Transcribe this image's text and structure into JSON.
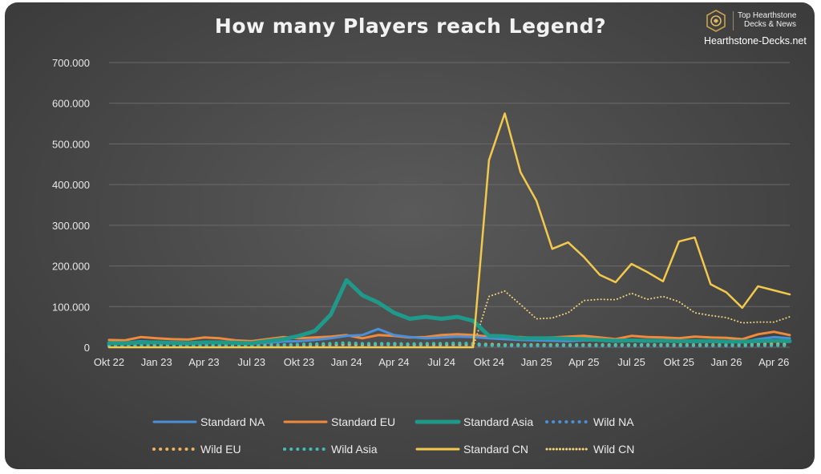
{
  "header": {
    "title": "How many Players reach Legend?",
    "brand_line1": "Top Hearthstone",
    "brand_line2": "Decks & News",
    "brand_site": "Hearthstone-Decks.net",
    "logo_icon": "hearthstone-logo-icon"
  },
  "chart_data": {
    "type": "line",
    "title": "How many Players reach Legend?",
    "xlabel": "",
    "ylabel": "",
    "ylim": [
      0,
      700000
    ],
    "y_ticks": [
      0,
      100000,
      200000,
      300000,
      400000,
      500000,
      600000,
      700000
    ],
    "y_tick_labels": [
      "0",
      "100.000",
      "200.000",
      "300.000",
      "400.000",
      "500.000",
      "600.000",
      "700.000"
    ],
    "x": [
      "Okt 22",
      "Nov 22",
      "Dez 22",
      "Jan 23",
      "Feb 23",
      "Mär 23",
      "Apr 23",
      "Mai 23",
      "Jun 23",
      "Jul 23",
      "Aug 23",
      "Sep 23",
      "Okt 23",
      "Nov 23",
      "Dez 23",
      "Jan 24",
      "Feb 24",
      "Mär 24",
      "Apr 24",
      "Mai 24",
      "Jun 24",
      "Jul 24",
      "Aug 24",
      "Sep 24",
      "Okt 24",
      "Nov 24",
      "Dez 24",
      "Jan 25",
      "Feb 25",
      "Mär 25",
      "Apr 25",
      "Mai 25",
      "Jun 25",
      "Jul 25",
      "Aug 25",
      "Sep 25",
      "Okt 25",
      "Nov 25",
      "Dez 25",
      "Jan 26",
      "Feb 26",
      "Mär 26",
      "Apr 26",
      "Mai 26"
    ],
    "x_tick_labels": [
      "Okt 22",
      "Jan 23",
      "Apr 23",
      "Jul 23",
      "Okt 23",
      "Jan 24",
      "Apr 24",
      "Jul 24",
      "Okt 24",
      "Jan 25",
      "Apr 25",
      "Jul 25",
      "Okt 25",
      "Jan 26",
      "Apr 26"
    ],
    "x_tick_indices": [
      0,
      3,
      6,
      9,
      12,
      15,
      18,
      21,
      24,
      27,
      30,
      33,
      36,
      39,
      42
    ],
    "grid": "horizontal",
    "legend_position": "bottom",
    "series": [
      {
        "name": "Standard NA",
        "color": "#4a90d9",
        "style": "solid",
        "width": 3,
        "values": [
          12000,
          11000,
          15000,
          13000,
          12000,
          11000,
          13000,
          12000,
          10000,
          9000,
          11000,
          14000,
          15000,
          18000,
          22000,
          28000,
          30000,
          45000,
          30000,
          25000,
          22000,
          24000,
          26000,
          25000,
          22000,
          20000,
          18000,
          17000,
          16000,
          15000,
          17000,
          16000,
          14000,
          15000,
          14000,
          15000,
          14000,
          13000,
          15000,
          14000,
          12000,
          20000,
          25000,
          22000
        ]
      },
      {
        "name": "Standard EU",
        "color": "#f08a3c",
        "style": "solid",
        "width": 3,
        "values": [
          18000,
          17000,
          25000,
          22000,
          20000,
          19000,
          24000,
          22000,
          17000,
          15000,
          20000,
          25000,
          22000,
          24000,
          26000,
          30000,
          22000,
          30000,
          28000,
          24000,
          25000,
          30000,
          32000,
          30000,
          26000,
          24000,
          25000,
          22000,
          24000,
          26000,
          28000,
          24000,
          20000,
          28000,
          25000,
          24000,
          22000,
          26000,
          24000,
          23000,
          20000,
          32000,
          38000,
          30000
        ]
      },
      {
        "name": "Standard Asia",
        "color": "#1f9a8a",
        "style": "solid",
        "width": 5,
        "values": [
          10000,
          10000,
          12000,
          12000,
          11000,
          10000,
          12000,
          12000,
          11000,
          10000,
          15000,
          20000,
          28000,
          40000,
          80000,
          165000,
          128000,
          110000,
          85000,
          70000,
          75000,
          70000,
          75000,
          65000,
          28000,
          27000,
          22000,
          22000,
          22000,
          21000,
          20000,
          18000,
          16000,
          17000,
          16000,
          16000,
          15000,
          15000,
          15000,
          14000,
          14000,
          15000,
          16000,
          15000
        ]
      },
      {
        "name": "Wild NA",
        "color": "#4a90d9",
        "style": "dotted",
        "width": 4,
        "values": [
          3000,
          3000,
          4000,
          3000,
          3000,
          3000,
          4000,
          3000,
          3000,
          3000,
          3000,
          4000,
          4000,
          5000,
          5000,
          6000,
          5000,
          6000,
          6000,
          5000,
          5000,
          5000,
          5000,
          5000,
          5000,
          4000,
          4000,
          4000,
          4000,
          4000,
          4000,
          4000,
          4000,
          4000,
          4000,
          4000,
          4000,
          4000,
          4000,
          4000,
          4000,
          5000,
          5000,
          5000
        ]
      },
      {
        "name": "Wild EU",
        "color": "#f0b060",
        "style": "dotted",
        "width": 4,
        "values": [
          4000,
          4000,
          5000,
          5000,
          4000,
          4000,
          5000,
          5000,
          4000,
          4000,
          5000,
          6000,
          6000,
          6000,
          7000,
          8000,
          7000,
          8000,
          8000,
          7000,
          7000,
          7000,
          8000,
          7000,
          7000,
          6000,
          6000,
          6000,
          6000,
          6000,
          6000,
          6000,
          6000,
          6000,
          6000,
          6000,
          6000,
          6000,
          6000,
          6000,
          6000,
          7000,
          8000,
          7000
        ]
      },
      {
        "name": "Wild Asia",
        "color": "#3fc0b0",
        "style": "dotted",
        "width": 4,
        "values": [
          3000,
          3000,
          4000,
          3000,
          3000,
          3000,
          4000,
          4000,
          3000,
          3000,
          4000,
          6000,
          7000,
          8000,
          9000,
          11000,
          9000,
          9000,
          9000,
          8000,
          9000,
          9000,
          10000,
          9000,
          5000,
          5000,
          5000,
          5000,
          5000,
          5000,
          5000,
          5000,
          5000,
          5000,
          5000,
          5000,
          5000,
          5000,
          5000,
          5000,
          5000,
          5000,
          5000,
          5000
        ]
      },
      {
        "name": "Standard CN",
        "color": "#f2c94c",
        "style": "solid",
        "width": 2.5,
        "values": [
          0,
          0,
          0,
          0,
          0,
          0,
          0,
          0,
          0,
          0,
          0,
          0,
          0,
          0,
          0,
          0,
          0,
          0,
          0,
          0,
          0,
          0,
          0,
          0,
          460000,
          575000,
          430000,
          360000,
          242000,
          258000,
          222000,
          178000,
          160000,
          205000,
          185000,
          162000,
          260000,
          270000,
          155000,
          135000,
          97000,
          150000,
          140000,
          130000
        ]
      },
      {
        "name": "Wild CN",
        "color": "#f2d57a",
        "style": "dotted-fine",
        "width": 2,
        "values": [
          0,
          0,
          0,
          0,
          0,
          0,
          0,
          0,
          0,
          0,
          0,
          0,
          0,
          0,
          0,
          0,
          0,
          0,
          0,
          0,
          0,
          0,
          0,
          0,
          125000,
          138000,
          105000,
          70000,
          72000,
          85000,
          115000,
          118000,
          117000,
          133000,
          118000,
          125000,
          112000,
          85000,
          78000,
          73000,
          60000,
          62000,
          62000,
          75000
        ]
      }
    ]
  }
}
